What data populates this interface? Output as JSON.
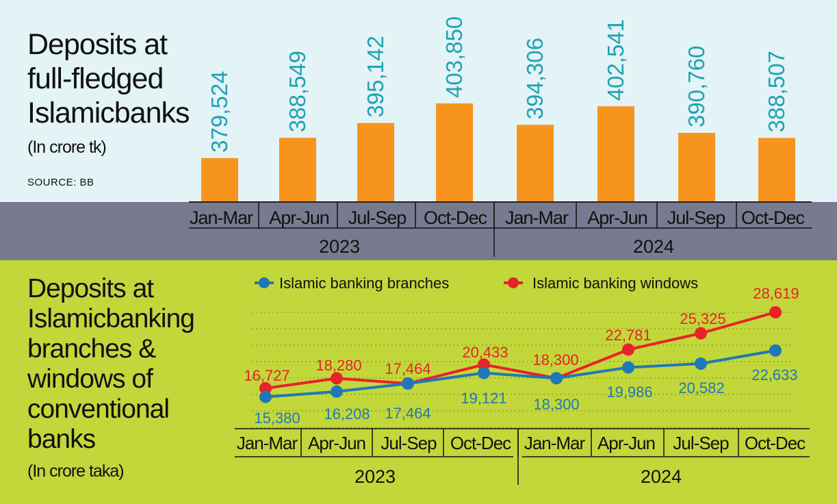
{
  "top": {
    "title": "Deposits at full-fledged Islamicbanks",
    "unit": "(In crore tk)",
    "source": "SOURCE: BB"
  },
  "bottom": {
    "title": "Deposits at Islamicbanking branches & windows of conventional banks",
    "unit": "(In crore taka)"
  },
  "colors": {
    "bar": "#f7941d",
    "bar_label": "#1fa2b3",
    "branches": "#1f78b8",
    "windows": "#e8212a"
  },
  "chart_data": [
    {
      "type": "bar",
      "categories": [
        "Jan-Mar",
        "Apr-Jun",
        "Jul-Sep",
        "Oct-Dec",
        "Jan-Mar",
        "Apr-Jun",
        "Jul-Sep",
        "Oct-Dec"
      ],
      "groups": [
        {
          "label": "2023",
          "count": 4
        },
        {
          "label": "2024",
          "count": 4
        }
      ],
      "values": [
        379524,
        388549,
        395142,
        403850,
        394306,
        402541,
        390760,
        388507
      ],
      "labels": [
        "379,524",
        "388,549",
        "395,142",
        "403,850",
        "394,306",
        "402,541",
        "390,760",
        "388,507"
      ]
    },
    {
      "type": "line",
      "categories": [
        "Jan-Mar",
        "Apr-Jun",
        "Jul-Sep",
        "Oct-Dec",
        "Jan-Mar",
        "Apr-Jun",
        "Jul-Sep",
        "Oct-Dec"
      ],
      "groups": [
        {
          "label": "2023",
          "count": 4
        },
        {
          "label": "2024",
          "count": 4
        }
      ],
      "series": [
        {
          "name": "Islamic banking branches",
          "values": [
            15380,
            16208,
            17464,
            19121,
            18300,
            19986,
            20582,
            22633
          ],
          "labels": [
            "15,380",
            "16,208",
            "17,464",
            "19,121",
            "18,300",
            "19,986",
            "20,582",
            "22,633"
          ]
        },
        {
          "name": "Islamic banking windows",
          "values": [
            16727,
            18280,
            17464,
            20433,
            18300,
            22781,
            25325,
            28619
          ],
          "labels": [
            "16,727",
            "18,280",
            "17,464",
            "20,433",
            "18,300",
            "22,781",
            "25,325",
            "28,619"
          ]
        }
      ]
    }
  ]
}
